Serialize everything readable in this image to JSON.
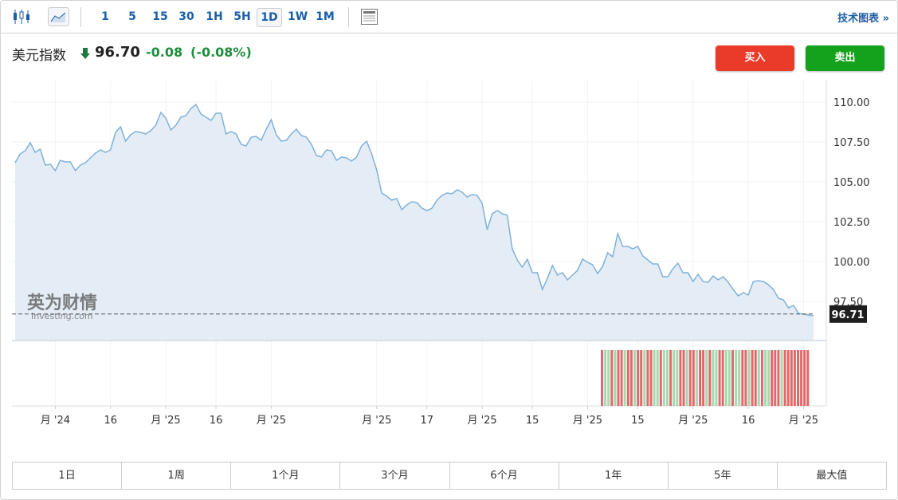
{
  "toolbar": {
    "intervals": [
      "1",
      "5",
      "15",
      "30",
      "1H",
      "5H",
      "1D",
      "1W",
      "1M"
    ],
    "active_index": 6,
    "technical": "技术图表 »"
  },
  "header": {
    "name": "美元指数",
    "price": "96.70",
    "change": "-0.08",
    "change_pct": "(-0.08%)"
  },
  "buttons": {
    "buy": "买入",
    "sell": "卖出"
  },
  "watermark": {
    "cn": "英为财情",
    "en": "Investing.com"
  },
  "chart_data": {
    "type": "area",
    "values": [
      106.2,
      106.75,
      106.95,
      107.45,
      106.85,
      107.05,
      106.05,
      106.1,
      105.7,
      106.35,
      106.25,
      106.25,
      105.7,
      106.05,
      106.2,
      106.5,
      106.8,
      107.0,
      106.85,
      107.0,
      108.1,
      108.45,
      107.55,
      107.95,
      108.15,
      108.1,
      108.0,
      108.2,
      108.55,
      109.35,
      109.0,
      108.25,
      108.55,
      109.05,
      109.15,
      109.6,
      109.85,
      109.25,
      109.05,
      108.85,
      109.3,
      109.3,
      108.0,
      108.15,
      108.0,
      107.35,
      107.25,
      107.8,
      107.85,
      107.6,
      108.3,
      108.9,
      107.95,
      107.55,
      107.6,
      108.0,
      108.3,
      107.9,
      107.8,
      107.35,
      106.65,
      106.55,
      107.0,
      106.95,
      106.35,
      106.55,
      106.5,
      106.3,
      106.55,
      107.25,
      107.55,
      106.75,
      105.75,
      104.3,
      104.1,
      103.85,
      103.95,
      103.25,
      103.55,
      103.75,
      103.7,
      103.35,
      103.2,
      103.35,
      103.85,
      104.15,
      104.3,
      104.25,
      104.5,
      104.35,
      104.05,
      104.2,
      104.15,
      103.65,
      102.0,
      103.0,
      103.2,
      103.0,
      102.9,
      100.8,
      100.1,
      99.65,
      100.15,
      99.3,
      99.3,
      98.25,
      98.95,
      99.75,
      99.15,
      99.3,
      98.85,
      99.15,
      99.45,
      100.15,
      99.95,
      99.8,
      99.25,
      99.7,
      100.55,
      100.3,
      101.75,
      100.95,
      100.95,
      100.8,
      100.95,
      100.35,
      100.1,
      99.85,
      99.85,
      99.05,
      99.05,
      99.55,
      99.9,
      99.3,
      99.3,
      98.75,
      99.2,
      98.75,
      98.7,
      99.1,
      98.85,
      99.05,
      98.7,
      98.25,
      97.85,
      98.05,
      97.9,
      98.75,
      98.8,
      98.75,
      98.55,
      98.25,
      97.7,
      97.6,
      97.1,
      97.25,
      96.75,
      96.7,
      96.65,
      96.6
    ],
    "color": "#7fb1da",
    "fill": "#e4edf5",
    "xlim": [
      0,
      159
    ],
    "xticks": [
      {
        "value": 8,
        "label": "月 '24"
      },
      {
        "value": 19,
        "label": "16"
      },
      {
        "value": 30,
        "label": "月 '25"
      },
      {
        "value": 40,
        "label": "16"
      },
      {
        "value": 51,
        "label": "月 '25"
      },
      {
        "value": 72,
        "label": "月 '25"
      },
      {
        "value": 82,
        "label": "17"
      },
      {
        "value": 93,
        "label": "月 '25"
      },
      {
        "value": 103,
        "label": "15"
      },
      {
        "value": 114,
        "label": "月 '25"
      },
      {
        "value": 124,
        "label": "15"
      },
      {
        "value": 135,
        "label": "月 '25"
      },
      {
        "value": 146,
        "label": "16"
      },
      {
        "value": 157,
        "label": "月 '25"
      }
    ],
    "ylim": [
      95.1,
      111.35
    ],
    "yticks": [
      {
        "value": 97.5,
        "label": "97.50"
      },
      {
        "value": 100,
        "label": "100.00"
      },
      {
        "value": 102.5,
        "label": "102.50"
      },
      {
        "value": 105,
        "label": "105.00"
      },
      {
        "value": 107.5,
        "label": "107.50"
      },
      {
        "value": 110,
        "label": "110.00"
      }
    ],
    "last_value": 96.71,
    "grid": true,
    "volume_colors": [
      "#e06a6a",
      "#a8d8b0",
      "#a8d8b0",
      "#e06a6a",
      "#a8d8b0",
      "#e06a6a",
      "#e06a6a",
      "#a8d8b0",
      "#e06a6a",
      "#e06a6a",
      "#a8d8b0",
      "#e06a6a",
      "#e06a6a",
      "#a8d8b0",
      "#e06a6a",
      "#e06a6a",
      "#a8d8b0",
      "#a8d8b0",
      "#e06a6a",
      "#a8d8b0",
      "#a8d8b0",
      "#e06a6a",
      "#a8d8b0",
      "#a8d8b0",
      "#e06a6a",
      "#e06a6a",
      "#a8d8b0",
      "#e06a6a",
      "#e06a6a",
      "#a8d8b0",
      "#e06a6a",
      "#e06a6a",
      "#a8d8b0",
      "#e06a6a",
      "#a8d8b0",
      "#a8d8b0",
      "#e06a6a",
      "#e06a6a",
      "#a8d8b0",
      "#a8d8b0",
      "#e06a6a",
      "#a8d8b0",
      "#a8d8b0",
      "#e06a6a",
      "#e06a6a",
      "#a8d8b0",
      "#e06a6a",
      "#e06a6a",
      "#a8d8b0",
      "#e06a6a",
      "#a8d8b0",
      "#a8d8b0",
      "#e06a6a",
      "#e06a6a",
      "#e06a6a",
      "#a8d8b0",
      "#e06a6a",
      "#e06a6a",
      "#e06a6a",
      "#e06a6a",
      "#e06a6a",
      "#e06a6a",
      "#e06a6a",
      "#e06a6a"
    ]
  },
  "ranges": [
    "1日",
    "1周",
    "1个月",
    "3个月",
    "6个月",
    "1年",
    "5年",
    "最大值"
  ]
}
